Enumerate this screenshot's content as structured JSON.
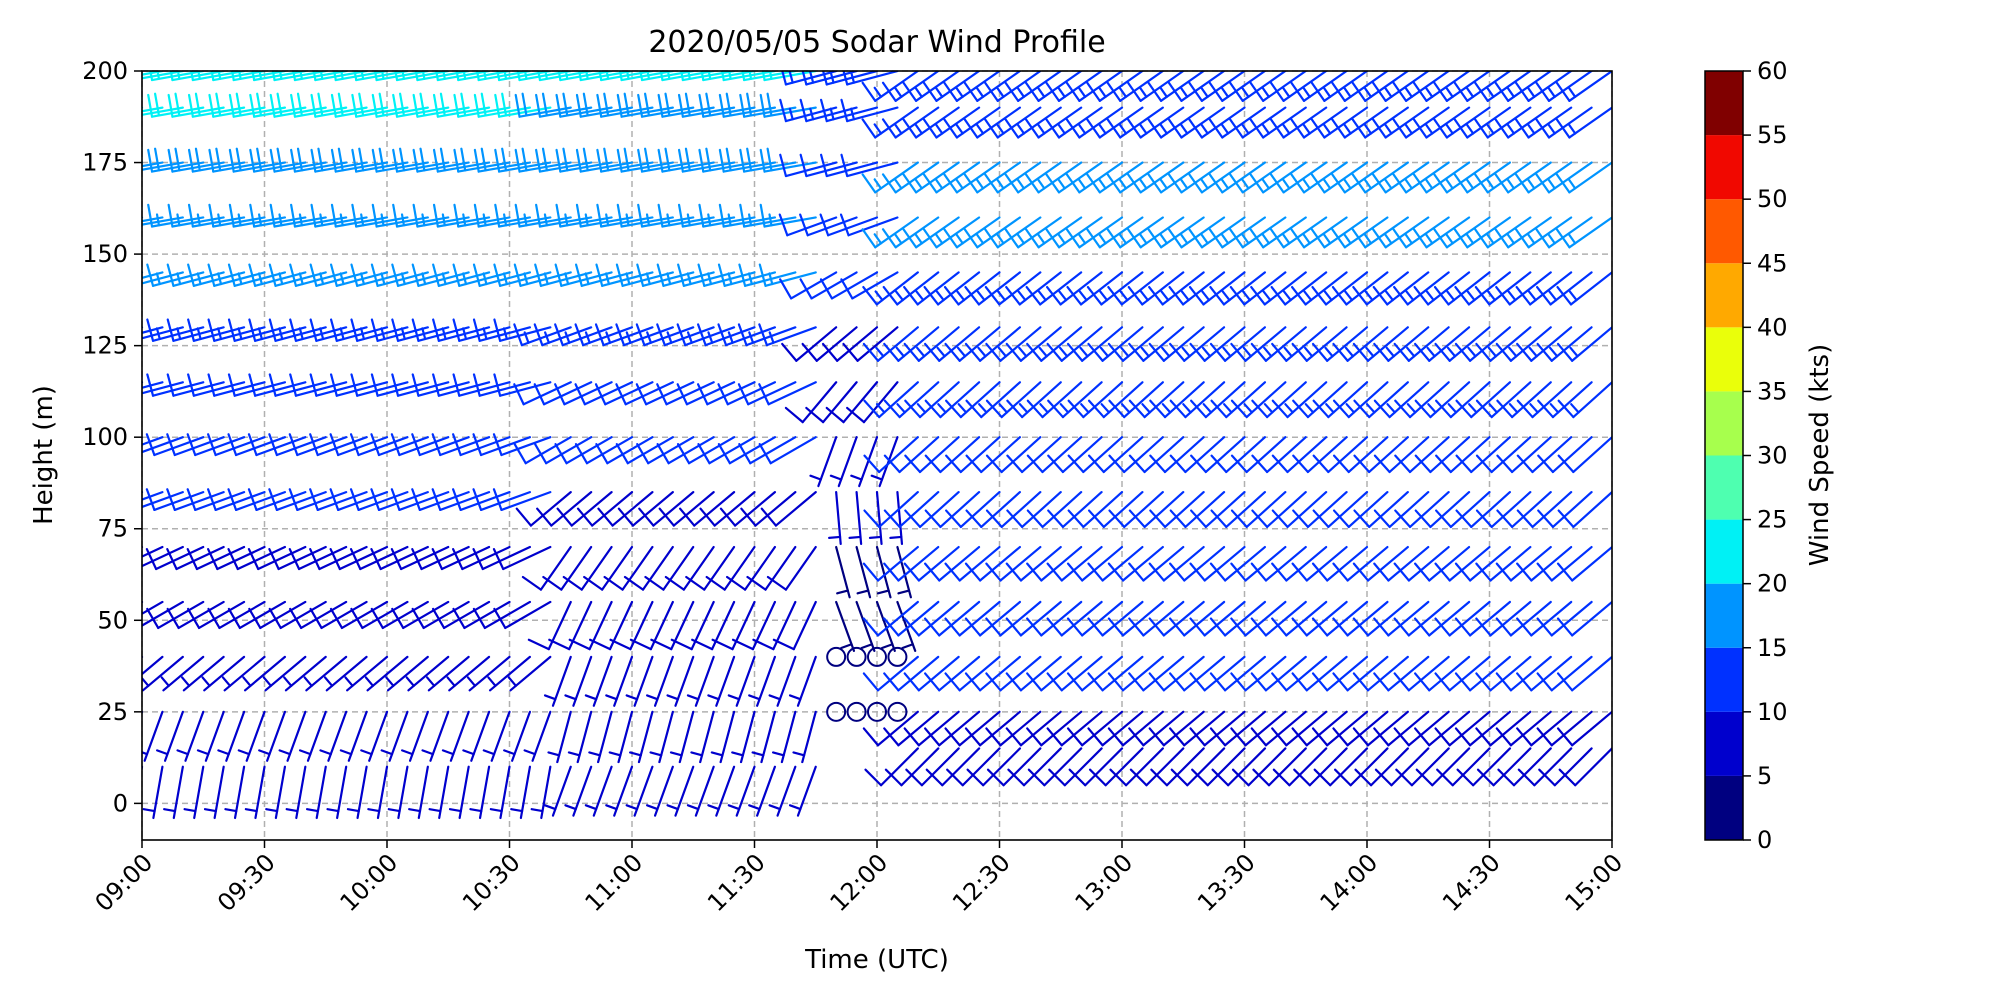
{
  "chart_data": {
    "type": "barb",
    "title": "2020/05/05 Sodar Wind Profile",
    "xlabel": "Time (UTC)",
    "ylabel": "Height (m)",
    "x_ticks": [
      "09:00",
      "09:30",
      "10:00",
      "10:30",
      "11:00",
      "11:30",
      "12:00",
      "12:30",
      "13:00",
      "13:30",
      "14:00",
      "14:30",
      "15:00"
    ],
    "xlim": [
      "09:00",
      "15:00"
    ],
    "ylim": [
      -10,
      200
    ],
    "y_ticks": [
      0,
      25,
      50,
      75,
      100,
      125,
      150,
      175,
      200
    ],
    "grid": true,
    "colorbar": {
      "label": "Wind Speed (kts)",
      "ticks": [
        0,
        5,
        10,
        15,
        20,
        25,
        30,
        35,
        40,
        45,
        50,
        55,
        60
      ],
      "bin_colors": [
        "#000080",
        "#0000cd",
        "#0031ff",
        "#0094ff",
        "#00f1f5",
        "#4effb0",
        "#a7ff4d",
        "#eaff0a",
        "#ffa900",
        "#ff5900",
        "#f10800",
        "#800000"
      ]
    },
    "sample_interval_minutes": 5,
    "heights": [
      10,
      25,
      40,
      55,
      70,
      85,
      100,
      115,
      130,
      145,
      160,
      175,
      190,
      200
    ],
    "profile": [
      {
        "until": "10:40",
        "heights": [
          10,
          25,
          40,
          55,
          70,
          85,
          100,
          115,
          130,
          145,
          160,
          175,
          190,
          200
        ],
        "direction_deg": [
          190,
          200,
          230,
          240,
          245,
          250,
          250,
          255,
          255,
          255,
          260,
          260,
          260,
          260
        ],
        "speed_kts": [
          5,
          6,
          7,
          8,
          9,
          10,
          11,
          12,
          14,
          15,
          17,
          19,
          20,
          21
        ]
      },
      {
        "until": "11:45",
        "heights": [
          10,
          25,
          40,
          55,
          70,
          85,
          100,
          115,
          130,
          145,
          160,
          175,
          190,
          200
        ],
        "direction_deg": [
          200,
          195,
          200,
          205,
          215,
          230,
          240,
          245,
          250,
          255,
          260,
          260,
          260,
          260
        ],
        "speed_kts": [
          6,
          7,
          7,
          8,
          8,
          9,
          10,
          12,
          14,
          15,
          17,
          18,
          19,
          20
        ]
      },
      {
        "until": "12:05",
        "heights": [
          25,
          40,
          55,
          70,
          85,
          100,
          115,
          130,
          145,
          160,
          175,
          190,
          200
        ],
        "direction_deg": [
          180,
          170,
          160,
          165,
          175,
          200,
          220,
          230,
          240,
          250,
          255,
          255,
          255
        ],
        "speed_kts": [
          1,
          2,
          3,
          4,
          5,
          6,
          8,
          9,
          10,
          11,
          12,
          13,
          14
        ]
      },
      {
        "until": "15:00",
        "heights": [
          15,
          25,
          40,
          55,
          70,
          85,
          100,
          115,
          130,
          145,
          160,
          175,
          190,
          200
        ],
        "direction_deg": [
          225,
          230,
          230,
          230,
          230,
          228,
          228,
          228,
          230,
          232,
          235,
          235,
          235,
          235
        ],
        "speed_kts": [
          8,
          9,
          10,
          11,
          11,
          12,
          12,
          13,
          13,
          14,
          15,
          15,
          14,
          13
        ]
      }
    ]
  }
}
